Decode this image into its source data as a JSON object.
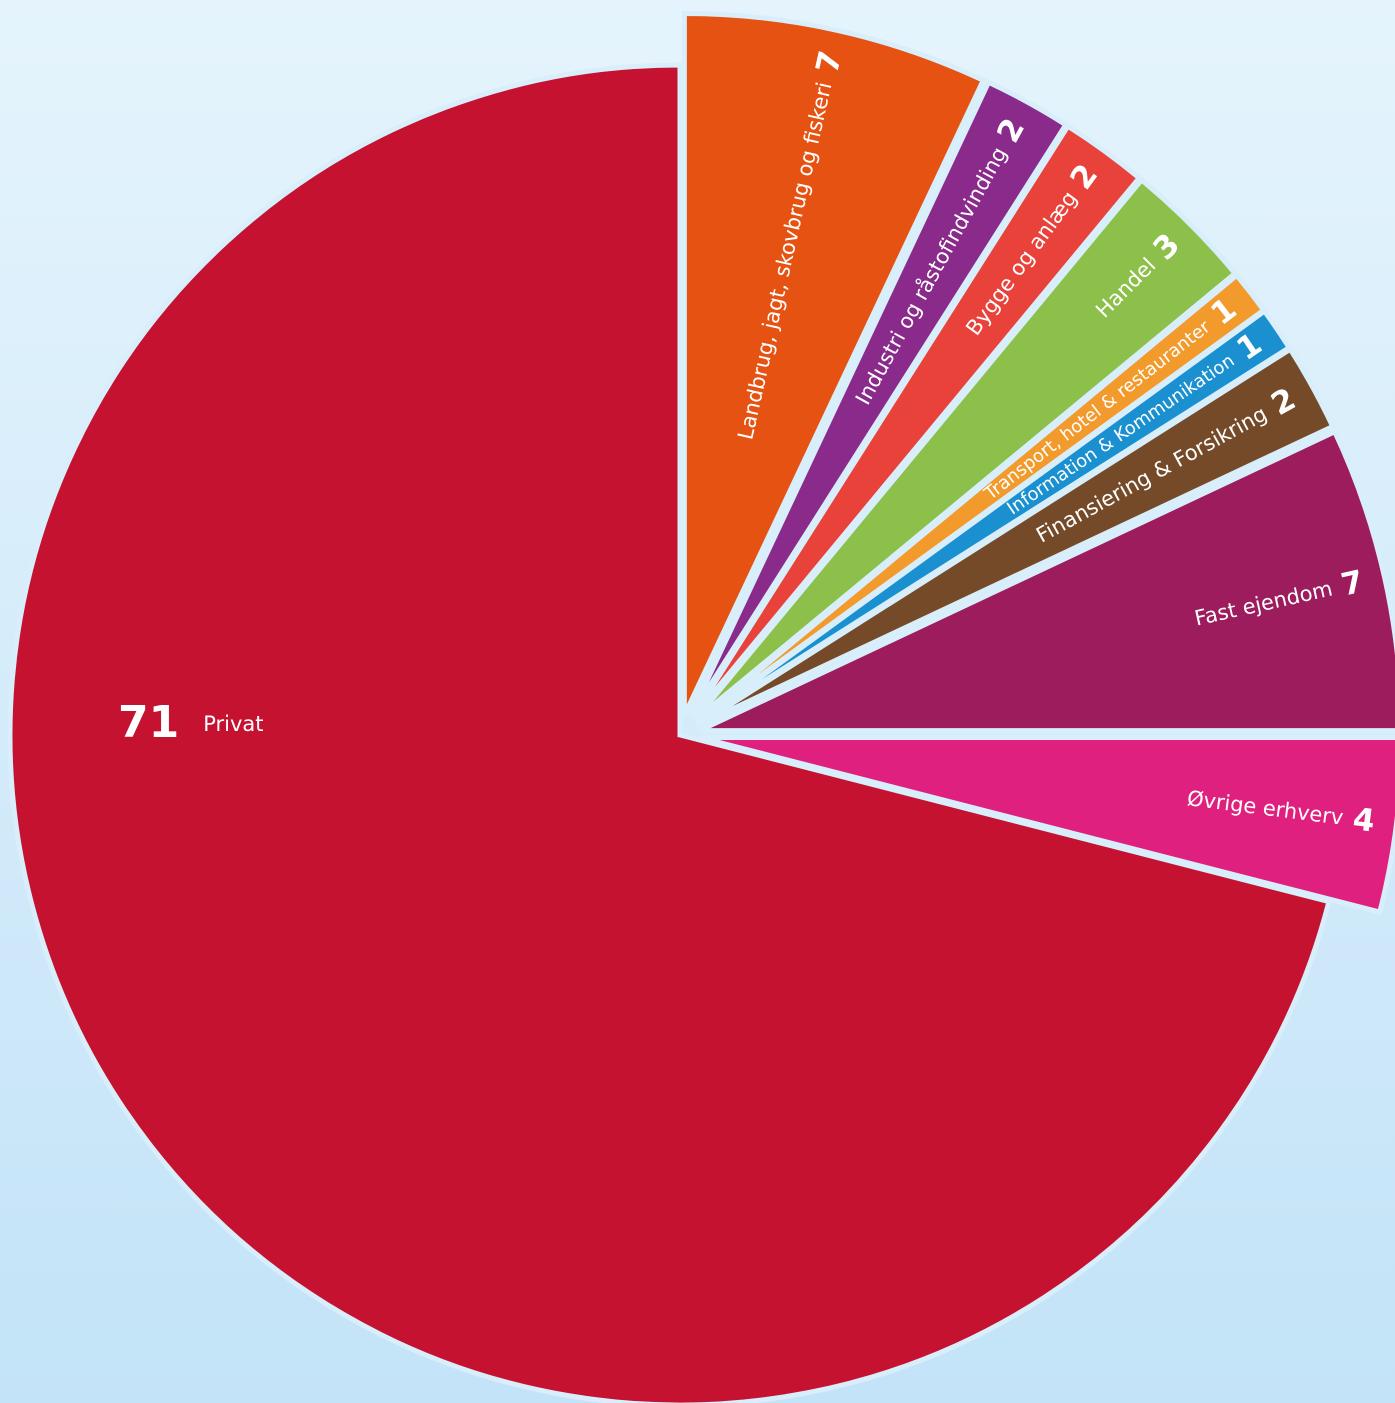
{
  "chart_data": {
    "type": "pie",
    "categories": [
      "Landbrug, jagt, skovbrug og fiskeri",
      "Industri og råstofindvinding",
      "Bygge og anlæg",
      "Handel",
      "Transport, hotel & restauranter",
      "Information & Kommunikation",
      "Finansiering & Forsikring",
      "Fast ejendom",
      "Øvrige erhverv",
      "Privat"
    ],
    "values": [
      7,
      2,
      2,
      3,
      1,
      1,
      2,
      7,
      4,
      71
    ],
    "colors": [
      "#e65212",
      "#8a2a8a",
      "#e8423a",
      "#8cc04a",
      "#f39a2c",
      "#1a90d0",
      "#744a28",
      "#9c1c5e",
      "#e0207e",
      "#c41230"
    ]
  }
}
